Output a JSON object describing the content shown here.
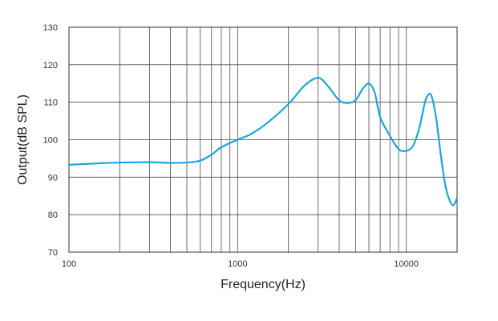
{
  "chart_data": {
    "type": "line",
    "title": "",
    "xlabel": "Frequency(Hz)",
    "ylabel": "Output(dB SPL)",
    "xscale": "log",
    "xlim": [
      100,
      20000
    ],
    "ylim": [
      70,
      130
    ],
    "x_tick_values": [
      100,
      1000,
      10000
    ],
    "x_tick_labels": [
      "100",
      "1000",
      "10000"
    ],
    "y_tick_values": [
      70,
      80,
      90,
      100,
      110,
      120,
      130
    ],
    "y_tick_labels": [
      "70",
      "80",
      "90",
      "100",
      "110",
      "120",
      "130"
    ],
    "grid_frequencies": [
      100,
      200,
      300,
      400,
      500,
      600,
      700,
      800,
      900,
      1000,
      2000,
      3000,
      4000,
      5000,
      6000,
      7000,
      8000,
      9000,
      10000,
      20000
    ],
    "grid": true,
    "colors": {
      "line": "#1aa6dc",
      "grid": "#4a4a4a",
      "axis": "#333333"
    },
    "series": [
      {
        "name": "Output",
        "x": [
          100,
          150,
          200,
          300,
          400,
          500,
          600,
          700,
          800,
          1000,
          1200,
          1500,
          2000,
          2500,
          3000,
          3400,
          4000,
          4500,
          5000,
          5500,
          6000,
          6500,
          7000,
          8000,
          9000,
          10000,
          11000,
          12000,
          13000,
          14000,
          15000,
          16000,
          17000,
          18000,
          19000,
          20000
        ],
        "y": [
          93.3,
          93.7,
          93.9,
          94.0,
          93.8,
          93.9,
          94.4,
          96.0,
          98.0,
          100.0,
          101.5,
          104.5,
          109.5,
          114.5,
          116.5,
          114.5,
          110.5,
          109.8,
          110.5,
          113.5,
          115.0,
          112.5,
          106.0,
          101.0,
          97.5,
          97.0,
          98.5,
          103.5,
          110.5,
          112.0,
          106.0,
          96.0,
          88.0,
          84.0,
          82.5,
          84.5
        ]
      }
    ]
  }
}
